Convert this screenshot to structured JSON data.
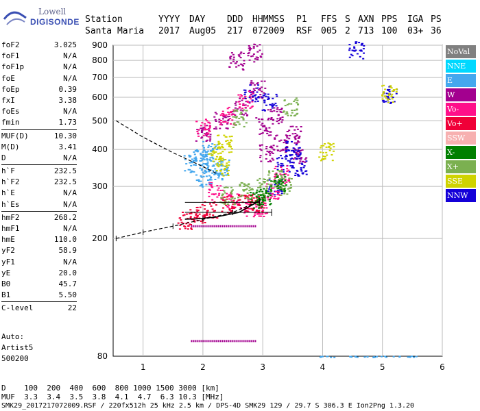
{
  "logo": {
    "line1": "Lowell",
    "line2": "DIGISONDE"
  },
  "header": {
    "labels": [
      "Station",
      "YYYY",
      "DAY",
      "DDD",
      "HHMMSS",
      "P1",
      "FFS",
      "S",
      "AXN",
      "PPS",
      "IGA",
      "PS"
    ],
    "values": [
      "Santa Maria",
      "2017",
      "Aug05",
      "217",
      "072009",
      "RSF",
      "005",
      "2",
      "713",
      "100",
      "03+",
      "36"
    ]
  },
  "params": [
    {
      "name": "foF2",
      "value": "3.025"
    },
    {
      "name": "foF1",
      "value": "N/A"
    },
    {
      "name": "foF1p",
      "value": "N/A"
    },
    {
      "name": "foE",
      "value": "N/A"
    },
    {
      "name": "foEp",
      "value": "0.39"
    },
    {
      "name": "fxI",
      "value": "3.38"
    },
    {
      "name": "foEs",
      "value": "N/A"
    },
    {
      "name": "fmin",
      "value": "1.73"
    },
    {
      "sep": true
    },
    {
      "name": "MUF(D)",
      "value": "10.30"
    },
    {
      "name": "M(D)",
      "value": "3.41"
    },
    {
      "name": "D",
      "value": "N/A"
    },
    {
      "sep": true
    },
    {
      "name": "h`F",
      "value": "232.5"
    },
    {
      "name": "h`F2",
      "value": "232.5"
    },
    {
      "name": "h`E",
      "value": "N/A"
    },
    {
      "name": "h`Es",
      "value": "N/A"
    },
    {
      "sep": true
    },
    {
      "name": "hmF2",
      "value": "268.2"
    },
    {
      "name": "hmF1",
      "value": "N/A"
    },
    {
      "name": "hmE",
      "value": "110.0"
    },
    {
      "name": "yF2",
      "value": "58.9"
    },
    {
      "name": "yF1",
      "value": "N/A"
    },
    {
      "name": "yE",
      "value": "20.0"
    },
    {
      "name": "B0",
      "value": "45.7"
    },
    {
      "name": "B1",
      "value": "5.50"
    },
    {
      "sep": true
    },
    {
      "name": "C-level",
      "value": "22"
    }
  ],
  "autoscale": {
    "line1": "Auto:",
    "line2": "Artist5",
    "line3": "500200"
  },
  "footer": {
    "d_label": "D",
    "d_values": "100  200  400  600  800 1000 1500 3000 [km]",
    "muf_label": "MUF",
    "muf_values": "3.3  3.4  3.5  3.8  4.1  4.7  6.3 10.3 [MHz]",
    "file_line": "SMK29_2017217072009.RSF / 220fx512h 25 kHz 2.5 km / DPS-4D SMK29 129 / 29.7 S 306.3 E Ion2Png 1.3.20"
  },
  "legend": [
    {
      "label": "NoVal",
      "color": "#808080"
    },
    {
      "label": "NNE",
      "color": "#00d8ff"
    },
    {
      "label": "E",
      "color": "#44a7ee"
    },
    {
      "label": "W",
      "color": "#a3008f"
    },
    {
      "label": "Vo-",
      "color": "#ff0f8a"
    },
    {
      "label": "Vo+",
      "color": "#f00038"
    },
    {
      "label": "SSW",
      "color": "#f7b0b0"
    },
    {
      "label": "X-",
      "color": "#007f00"
    },
    {
      "label": "X+",
      "color": "#7bb050"
    },
    {
      "label": "SSE",
      "color": "#cfd300"
    },
    {
      "label": "NNW",
      "color": "#1400d8"
    }
  ],
  "chart_data": {
    "type": "scatter",
    "title": "",
    "xlabel": "",
    "ylabel": "",
    "xlim": [
      0.5,
      6.0
    ],
    "ylim": [
      80,
      900
    ],
    "y_scale": "log",
    "xticks": [
      "1",
      "2",
      "3",
      "4",
      "5",
      "6"
    ],
    "yticks": [
      "80",
      "200",
      "300",
      "400",
      "500",
      "600",
      "700",
      "800",
      "900"
    ],
    "grid": true,
    "legend_placement": "right",
    "series": [
      {
        "color": "#a3008f",
        "points": [
          [
            2.0,
            455
          ],
          [
            2.3,
            500
          ],
          [
            2.6,
            560
          ],
          [
            2.9,
            640
          ],
          [
            3.0,
            480
          ],
          [
            3.2,
            520
          ],
          [
            3.05,
            390
          ],
          [
            3.3,
            420
          ],
          [
            3.6,
            380
          ],
          [
            3.5,
            450
          ],
          [
            2.55,
            800
          ],
          [
            2.85,
            850
          ]
        ]
      },
      {
        "color": "#1400d8",
        "points": [
          [
            2.8,
            620
          ],
          [
            3.1,
            580
          ],
          [
            3.5,
            400
          ],
          [
            3.35,
            360
          ],
          [
            3.2,
            300
          ],
          [
            3.6,
            350
          ],
          [
            4.55,
            870
          ],
          [
            5.1,
            615
          ]
        ]
      },
      {
        "color": "#ff0f8a",
        "points": [
          [
            2.0,
            475
          ],
          [
            2.4,
            520
          ],
          [
            2.7,
            590
          ],
          [
            2.2,
            290
          ],
          [
            2.5,
            270
          ],
          [
            2.8,
            255
          ],
          [
            2.95,
            255
          ],
          [
            3.15,
            290
          ],
          [
            3.3,
            330
          ]
        ]
      },
      {
        "color": "#f00038",
        "points": [
          [
            1.7,
            230
          ],
          [
            1.9,
            240
          ],
          [
            2.1,
            250
          ],
          [
            2.4,
            262
          ],
          [
            2.7,
            265
          ],
          [
            2.9,
            262
          ]
        ]
      },
      {
        "color": "#44a7ee",
        "points": [
          [
            1.95,
            380
          ],
          [
            2.05,
            360
          ],
          [
            2.1,
            400
          ],
          [
            2.2,
            340
          ],
          [
            2.3,
            350
          ],
          [
            2.0,
            320
          ],
          [
            1.8,
            360
          ],
          [
            4.1,
            80
          ],
          [
            4.6,
            80
          ],
          [
            5.0,
            80
          ],
          [
            5.4,
            80
          ]
        ]
      },
      {
        "color": "#cfd300",
        "points": [
          [
            2.2,
            390
          ],
          [
            2.35,
            420
          ],
          [
            2.3,
            350
          ],
          [
            4.05,
            395
          ],
          [
            5.1,
            620
          ]
        ]
      },
      {
        "color": "#7bb050",
        "points": [
          [
            2.4,
            280
          ],
          [
            2.7,
            290
          ],
          [
            3.0,
            300
          ],
          [
            3.2,
            320
          ],
          [
            3.35,
            300
          ],
          [
            2.6,
            510
          ],
          [
            3.45,
            560
          ]
        ]
      },
      {
        "color": "#007f00",
        "points": [
          [
            2.9,
            270
          ],
          [
            3.0,
            280
          ],
          [
            3.25,
            310
          ]
        ]
      }
    ],
    "curves": {
      "profile": [
        [
          2.95,
          268.2
        ],
        [
          2.6,
          245
        ],
        [
          2.2,
          236
        ],
        [
          1.9,
          233
        ],
        [
          1.7,
          232.5
        ]
      ],
      "dashed_upper": [
        [
          0.55,
          500
        ],
        [
          1.0,
          440
        ],
        [
          1.5,
          390
        ],
        [
          2.0,
          350
        ],
        [
          2.25,
          330
        ]
      ],
      "dashed_lower": [
        [
          0.55,
          200
        ],
        [
          1.0,
          210
        ],
        [
          1.5,
          220
        ],
        [
          2.0,
          232
        ],
        [
          2.5,
          245
        ],
        [
          2.95,
          268.2
        ]
      ]
    },
    "horizontal_traces": [
      [
        1.8,
        2.9,
        220
      ],
      [
        1.8,
        2.9,
        90
      ]
    ]
  }
}
